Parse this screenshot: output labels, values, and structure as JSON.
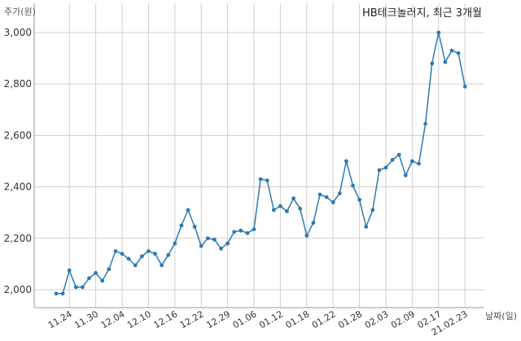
{
  "chart_data": {
    "type": "line",
    "title": "HB테크놀러지, 최근 3개월",
    "ylabel": "주가(원)",
    "xlabel": "날짜(일)",
    "ylim": [
      1950,
      3050
    ],
    "yticks": [
      2000,
      2200,
      2400,
      2600,
      2800,
      3000
    ],
    "ytick_labels": [
      "2,000",
      "2,200",
      "2,400",
      "2,600",
      "2,800",
      "3,000"
    ],
    "xtick_labels": [
      "11.24",
      "11.30",
      "12.04",
      "12.10",
      "12.16",
      "12.22",
      "12.29",
      "01.06",
      "01.12",
      "01.18",
      "01.22",
      "01.28",
      "02.03",
      "02.09",
      "02.17",
      "21.02.23"
    ],
    "xtick_indices": [
      2,
      6,
      10,
      14,
      18,
      22,
      26,
      30,
      34,
      38,
      42,
      46,
      50,
      54,
      58,
      62
    ],
    "grid": true,
    "line_color": "#2e7ab0",
    "series": [
      {
        "values": [
          1985,
          1985,
          2075,
          2010,
          2010,
          2045,
          2065,
          2035,
          2080,
          2150,
          2140,
          2120,
          2095,
          2130,
          2150,
          2140,
          2095,
          2135,
          2180,
          2250,
          2310,
          2245,
          2170,
          2200,
          2195,
          2160,
          2180,
          2225,
          2230,
          2220,
          2235,
          2430,
          2425,
          2310,
          2325,
          2305,
          2355,
          2315,
          2210,
          2260,
          2370,
          2360,
          2340,
          2375,
          2500,
          2405,
          2350,
          2245,
          2310,
          2465,
          2475,
          2505,
          2525,
          2445,
          2500,
          2490,
          2645,
          2880,
          3000,
          2885,
          2930,
          2920,
          2790
        ]
      }
    ]
  }
}
